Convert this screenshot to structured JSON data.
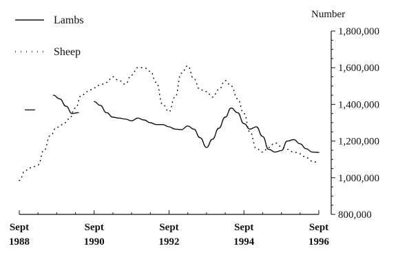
{
  "chart_data": {
    "type": "line",
    "title": "",
    "xlabel": "",
    "ylabel": "Number",
    "ylim": [
      800000,
      1800000
    ],
    "yticks": [
      800000,
      1000000,
      1200000,
      1400000,
      1600000,
      1800000
    ],
    "ytick_labels": [
      "800,000",
      "1,000,000",
      "1,200,000",
      "1,400,000",
      "1,600,000",
      "1,800,000"
    ],
    "xlim": [
      1988.67,
      1996.67
    ],
    "xticks": [
      1988.67,
      1990.67,
      1992.67,
      1994.67,
      1996.67
    ],
    "xtick_labels": [
      {
        "top": "Sept",
        "bottom": "1988"
      },
      {
        "top": "Sept",
        "bottom": "1990"
      },
      {
        "top": "Sept",
        "bottom": "1992"
      },
      {
        "top": "Sept",
        "bottom": "1994"
      },
      {
        "top": "Sept",
        "bottom": "1996"
      }
    ],
    "grid": false,
    "legend_position": "top-left",
    "y_axis_side": "right",
    "series": [
      {
        "name": "Lambs",
        "style": "solid",
        "color": "#111111",
        "x": [
          1988.83,
          1989.08,
          null,
          1989.58,
          1989.75,
          1989.92,
          1990.08,
          1990.25,
          null,
          1990.67,
          1990.83,
          1991.0,
          1991.17,
          1991.33,
          1991.5,
          1991.67,
          1991.83,
          1992.0,
          1992.17,
          1992.33,
          1992.5,
          1992.67,
          1992.83,
          1993.0,
          1993.17,
          1993.33,
          1993.5,
          1993.67,
          1993.83,
          1994.0,
          1994.17,
          1994.33,
          1994.5,
          1994.67,
          1994.83,
          1995.0,
          1995.17,
          1995.33,
          1995.5,
          1995.67,
          1995.83,
          1996.0,
          1996.17,
          1996.33,
          1996.5,
          1996.67
        ],
        "values": [
          1370000,
          1370000,
          null,
          1450000,
          1430000,
          1390000,
          1350000,
          1355000,
          null,
          1415000,
          1395000,
          1355000,
          1330000,
          1325000,
          1320000,
          1310000,
          1325000,
          1315000,
          1300000,
          1290000,
          1290000,
          1278000,
          1265000,
          1262000,
          1282000,
          1265000,
          1218000,
          1165000,
          1210000,
          1270000,
          1330000,
          1380000,
          1355000,
          1295000,
          1265000,
          1278000,
          1225000,
          1155000,
          1140000,
          1148000,
          1200000,
          1208000,
          1185000,
          1158000,
          1140000,
          1138000
        ]
      },
      {
        "name": "Sheep",
        "style": "dotted",
        "color": "#111111",
        "x": [
          1988.67,
          1988.83,
          1989.0,
          1989.17,
          1989.33,
          1989.5,
          1989.67,
          1989.83,
          1990.0,
          1990.17,
          1990.33,
          1990.5,
          1990.67,
          1990.83,
          1991.0,
          1991.17,
          1991.33,
          1991.5,
          1991.67,
          1991.83,
          1992.0,
          1992.17,
          1992.33,
          1992.5,
          1992.67,
          1992.83,
          1993.0,
          1993.17,
          1993.33,
          1993.5,
          1993.67,
          1993.83,
          1994.0,
          1994.17,
          1994.33,
          1994.5,
          1994.67,
          1994.83,
          1995.0,
          1995.17,
          1995.33,
          1995.5,
          1995.67,
          1995.83,
          1996.0,
          1996.17,
          1996.33,
          1996.5,
          1996.67
        ],
        "values": [
          985000,
          1040000,
          1055000,
          1070000,
          1150000,
          1230000,
          1275000,
          1290000,
          1320000,
          1380000,
          1450000,
          1470000,
          1490000,
          1505000,
          1520000,
          1550000,
          1530000,
          1510000,
          1560000,
          1600000,
          1600000,
          1580000,
          1520000,
          1400000,
          1360000,
          1440000,
          1570000,
          1610000,
          1540000,
          1480000,
          1470000,
          1440000,
          1480000,
          1530000,
          1500000,
          1430000,
          1350000,
          1250000,
          1160000,
          1140000,
          1165000,
          1190000,
          1170000,
          1155000,
          1140000,
          1130000,
          1110000,
          1090000,
          1080000
        ]
      }
    ]
  }
}
